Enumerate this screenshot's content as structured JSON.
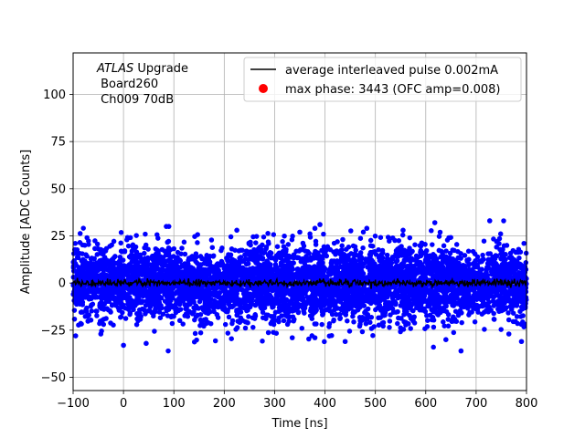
{
  "chart_data": {
    "type": "scatter",
    "title": "",
    "xlabel": "Time [ns]",
    "ylabel": "Amplitude [ADC Counts]",
    "xlim": [
      -100,
      800
    ],
    "ylim": [
      -57,
      122
    ],
    "xticks": [
      -100,
      0,
      100,
      200,
      300,
      400,
      500,
      600,
      700,
      800
    ],
    "xtick_labels": [
      "−100",
      "0",
      "100",
      "200",
      "300",
      "400",
      "500",
      "600",
      "700",
      "800"
    ],
    "yticks": [
      -50,
      -25,
      0,
      25,
      50,
      75,
      100
    ],
    "ytick_labels": [
      "−50",
      "−25",
      "0",
      "25",
      "50",
      "75",
      "100"
    ],
    "grid": true,
    "legend_position": "top-right",
    "annotation": {
      "line1_italic": "ATLAS",
      "line1_rest": " Upgrade",
      "line2": " Board260",
      "line3": " Ch009 70dB"
    },
    "series": [
      {
        "name": "average interleaved pulse 0.002mA",
        "kind": "line",
        "color": "#000000",
        "description_values": {
          "x_range": [
            -100,
            800
          ],
          "y_mean": 0,
          "y_noise_amplitude": 1.5
        }
      },
      {
        "name": "max phase: 3443 (OFC amp=0.008)",
        "kind": "marker",
        "color": "#ff0000",
        "points": []
      },
      {
        "name": "",
        "kind": "scatter",
        "color": "#0000ff",
        "description_values": {
          "x_range": [
            -100,
            800
          ],
          "y_mean": 0,
          "y_dense_band": [
            -20,
            20
          ],
          "y_extremes": [
            -36,
            33
          ]
        },
        "outliers": [
          {
            "x": 85,
            "y": 30
          },
          {
            "x": 90,
            "y": 30
          },
          {
            "x": 390,
            "y": 31
          },
          {
            "x": 380,
            "y": 29
          },
          {
            "x": 483,
            "y": 29
          },
          {
            "x": 618,
            "y": 32
          },
          {
            "x": 727,
            "y": 33
          },
          {
            "x": 225,
            "y": 28
          },
          {
            "x": 555,
            "y": 28
          },
          {
            "x": 350,
            "y": 27
          },
          {
            "x": 670,
            "y": -36
          },
          {
            "x": 0,
            "y": -33
          },
          {
            "x": 45,
            "y": -32
          },
          {
            "x": -95,
            "y": -28
          },
          {
            "x": 640,
            "y": -30
          },
          {
            "x": 440,
            "y": -31
          },
          {
            "x": 790,
            "y": -31
          },
          {
            "x": 765,
            "y": -27
          },
          {
            "x": 380,
            "y": -29
          },
          {
            "x": -45,
            "y": -27
          },
          {
            "x": 335,
            "y": -29
          }
        ]
      }
    ]
  }
}
